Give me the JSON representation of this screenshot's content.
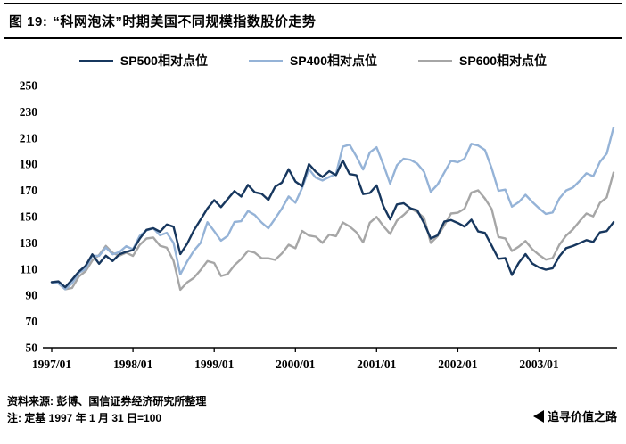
{
  "header": {
    "figure_label": "图 19:",
    "title": "“科网泡沫”时期美国不同规模指数股价走势"
  },
  "footer": {
    "source_note": "资料来源: 彭博、国信证券经济研究所整理",
    "base_note": "注: 定基 1997 年 1 月 31 日=100",
    "brand_text": "追寻价值之路"
  },
  "chart_data": {
    "type": "line",
    "title": "“科网泡沫”时期美国不同规模指数股价走势",
    "xlabel": "",
    "ylabel": "",
    "ylim": [
      50,
      250
    ],
    "y_ticks": [
      50,
      70,
      90,
      110,
      130,
      150,
      170,
      190,
      210,
      230,
      250
    ],
    "x_tick_labels": [
      "1997/01",
      "1998/01",
      "1999/01",
      "2000/01",
      "2001/01",
      "2002/01",
      "2003/01"
    ],
    "x_tick_idx": [
      0,
      12,
      24,
      36,
      48,
      60,
      72
    ],
    "n_points": 84,
    "frequency": "monthly 1997/01 - 2003/12",
    "grid": false,
    "legend_position": "top-center",
    "series": [
      {
        "name": "SP500相对点位",
        "color": "#17375e",
        "values": [
          100,
          100.6,
          96.2,
          101.9,
          108,
          112.5,
          121.2,
          114.1,
          120.2,
          116.1,
          121.2,
          123.2,
          124.5,
          133.2,
          139.9,
          141.2,
          138.5,
          144,
          142.3,
          121.5,
          129.2,
          139.5,
          147.8,
          156.2,
          162.6,
          157.3,
          163.4,
          169.5,
          165.3,
          174.2,
          168.6,
          167.5,
          162.7,
          172.8,
          176,
          186.2,
          176.8,
          173.2,
          190.1,
          184.3,
          180.3,
          184.7,
          181.7,
          192.8,
          182.5,
          181.6,
          167.2,
          168,
          173.9,
          158,
          147.9,
          159.3,
          160.3,
          156.4,
          154.8,
          145.1,
          133.3,
          135.8,
          146.2,
          147.4,
          145.2,
          142.4,
          147.7,
          138.7,
          137.6,
          127.8,
          117.8,
          118.4,
          105.5,
          114.7,
          121.4,
          114.2,
          111.2,
          109.5,
          110.6,
          119.7,
          126,
          127.6,
          129.8,
          132.1,
          130.7,
          138,
          139,
          145.8
        ]
      },
      {
        "name": "SP400相对点位",
        "color": "#95b3d7",
        "values": [
          100,
          99.1,
          94.7,
          99.2,
          107.1,
          110.1,
          120.2,
          120.1,
          126.4,
          121.3,
          123,
          127.5,
          125.1,
          135.4,
          139.6,
          141.1,
          135.8,
          137.7,
          130,
          105.9,
          115.7,
          124,
          130.1,
          145.8,
          138.9,
          131.7,
          135.3,
          145.9,
          146.5,
          154.3,
          151.2,
          145.6,
          141.1,
          148.5,
          156.2,
          165.4,
          160.6,
          172,
          186.3,
          179.8,
          177.6,
          180.3,
          182.5,
          203.4,
          205,
          196,
          186,
          199,
          202.9,
          189.7,
          175.2,
          189.2,
          194.2,
          193.3,
          190.5,
          184.3,
          168.9,
          174.5,
          183.6,
          192.7,
          191.5,
          194.3,
          205.6,
          204.3,
          200.9,
          186.9,
          169.7,
          170.6,
          157.6,
          161,
          166.7,
          161.2,
          156.4,
          152.1,
          153.2,
          163.9,
          170,
          172.2,
          177.3,
          183.1,
          180.8,
          191.8,
          198.1,
          217.9
        ]
      },
      {
        "name": "SP600相对点位",
        "color": "#a6a6a6",
        "values": [
          100,
          99,
          94.6,
          95.6,
          104.3,
          108.4,
          116.5,
          120.7,
          127.7,
          122.4,
          120.2,
          122.5,
          120.1,
          128.5,
          133.3,
          134.1,
          127.8,
          126.3,
          116.3,
          94.3,
          99.8,
          103.3,
          109.3,
          116.1,
          114.6,
          104.7,
          106.2,
          112.9,
          117.7,
          123.9,
          122.5,
          118.3,
          118.2,
          117,
          121.9,
          128.6,
          125.9,
          139.1,
          135.6,
          134.7,
          130.1,
          136.3,
          135.1,
          145.6,
          142.5,
          138.1,
          130.4,
          145.4,
          149.8,
          142.8,
          136.9,
          147,
          151.3,
          156.4,
          153.3,
          149.2,
          129.9,
          135.1,
          143.3,
          152.4,
          153,
          156.1,
          168.4,
          170.1,
          163.8,
          155.8,
          134.5,
          133.4,
          123.8,
          127.1,
          131.4,
          125.2,
          120.8,
          117.2,
          118.4,
          128.6,
          135.6,
          140.3,
          146.5,
          152.4,
          150.2,
          160.5,
          164.7,
          183.6
        ]
      }
    ]
  }
}
